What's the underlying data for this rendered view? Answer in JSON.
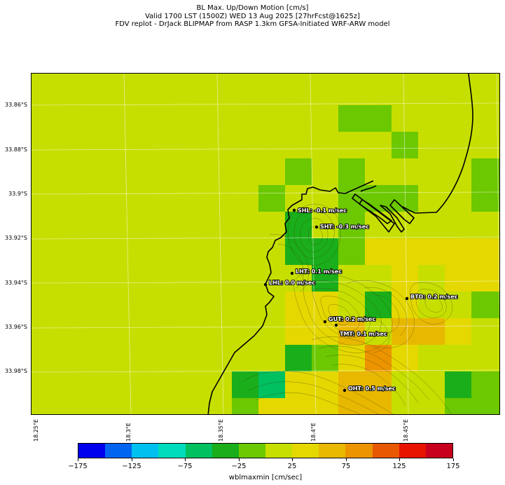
{
  "header": {
    "title": "BL Max. Up/Down Motion [cm/s]",
    "valid_line": "Valid 1700 LST (1500Z) WED 13 Aug 2025 [27hrFcst@1625z]",
    "source_line": "FDV replot - DrJack BLIPMAP from RASP 1.3km GFSA-Initiated WRF-ARW model"
  },
  "axes": {
    "lat_labels": [
      "33.86°S",
      "33.88°S",
      "33.9°S",
      "33.92°S",
      "33.94°S",
      "33.96°S",
      "33.98°S"
    ],
    "lon_labels": [
      "18.25°E",
      "18.3°E",
      "18.35°E",
      "18.4°E",
      "18.45°E"
    ]
  },
  "stations": [
    {
      "id": "SHL",
      "label": "SHL: -0.1 m/sec"
    },
    {
      "id": "SHT",
      "label": "SHT: -0.3 m/sec"
    },
    {
      "id": "LHT",
      "label": "LHT: 0.1 m/sec"
    },
    {
      "id": "LHL",
      "label": "LHL: 0.0 m/sec"
    },
    {
      "id": "BTO",
      "label": "BTO: 0.2 m/sec"
    },
    {
      "id": "GUT",
      "label": "GUT: 0.2 m/sec"
    },
    {
      "id": "TMT",
      "label": "TMT: 0.1 m/sec"
    },
    {
      "id": "OHT",
      "label": "OHT: 0.5 m/sec"
    }
  ],
  "colorbar": {
    "title": "wblmaxmin [cm/sec]",
    "tick_labels": [
      "−175",
      "−125",
      "−75",
      "−25",
      "25",
      "75",
      "125",
      "175"
    ],
    "colors": [
      "#0000ee",
      "#0064f0",
      "#00c0f0",
      "#00dcbc",
      "#00c060",
      "#1aae1a",
      "#6cc800",
      "#c6df00",
      "#e4d800",
      "#e8b800",
      "#ec9400",
      "#e85800",
      "#e81400",
      "#c8001e"
    ]
  },
  "legend_colors": {
    "positive": "#e4d800",
    "neutral": "#c6df00",
    "weak_down": "#6cc800",
    "down": "#1aae1a",
    "coast": "#000000"
  }
}
